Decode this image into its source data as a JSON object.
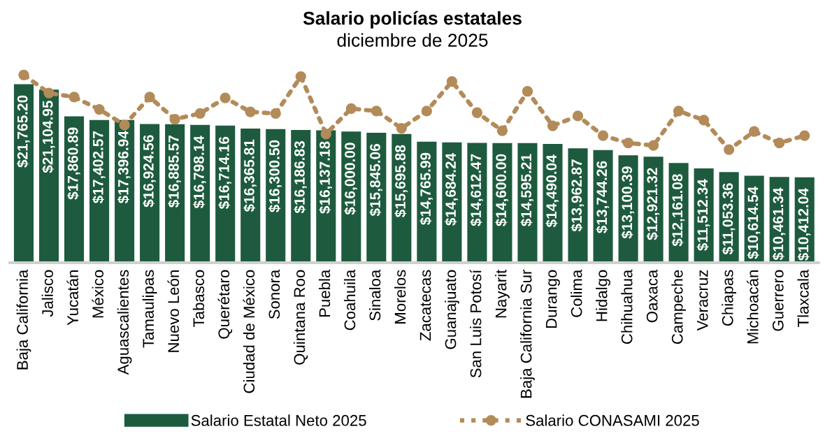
{
  "chart_data": {
    "type": "bar",
    "title": "Salario policías estatales",
    "subtitle": "diciembre de 2025",
    "categories": [
      "Baja California",
      "Jalisco",
      "Yucatán",
      "México",
      "Aguascalientes",
      "Tamaulipas",
      "Nuevo León",
      "Tabasco",
      "Querétaro",
      "Ciudad de México",
      "Sonora",
      "Quintana Roo",
      "Puebla",
      "Coahuila",
      "Sinaloa",
      "Morelos",
      "Zacatecas",
      "Guanajuato",
      "San Luis Potosí",
      "Nayarit",
      "Baja California Sur",
      "Durango",
      "Colima",
      "Hidalgo",
      "Chihuahua",
      "Oaxaca",
      "Campeche",
      "Veracruz",
      "Chiapas",
      "Michoacán",
      "Guerrero",
      "Tlaxcala"
    ],
    "series": [
      {
        "name": "Salario Estatal Neto 2025",
        "color": "#1e5b3e",
        "values": [
          21765.2,
          21104.95,
          17860.89,
          17402.57,
          17396.94,
          16924.56,
          16885.57,
          16798.14,
          16714.16,
          16365.81,
          16300.5,
          16186.83,
          16137.18,
          16000.0,
          15845.06,
          15695.88,
          14765.99,
          14684.24,
          14612.47,
          14600.0,
          14595.21,
          14490.04,
          13962.87,
          13744.26,
          13100.39,
          12921.32,
          12161.08,
          11512.34,
          11053.36,
          10614.54,
          10461.34,
          10412.04
        ],
        "value_labels": [
          "$21,765.20",
          "$21,104.95",
          "$17,860.89",
          "$17,402.57",
          "$17,396.94",
          "$16,924.56",
          "$16,885.57",
          "$16,798.14",
          "$16,714.16",
          "$16,365.81",
          "$16,300.50",
          "$16,186.83",
          "$16,137.18",
          "$16,000.00",
          "$15,845.06",
          "$15,695.88",
          "$14,765.99",
          "$14,684.24",
          "$14,612.47",
          "$14,600.00",
          "$14,595.21",
          "$14,490.04",
          "$13,962.87",
          "$13,744.26",
          "$13,100.39",
          "$12,921.32",
          "$12,161.08",
          "$11,512.34",
          "$11,053.36",
          "$10,614.54",
          "$10,461.34",
          "$10,412.04"
        ]
      },
      {
        "name": "Salario CONASAMI 2025",
        "type": "line",
        "color": "#b38b59",
        "line_style": "dotted",
        "marker": "circle",
        "values": [
          22900,
          20700,
          20200,
          18700,
          16800,
          20200,
          17500,
          18200,
          20100,
          18400,
          18200,
          22700,
          15700,
          18800,
          18500,
          16400,
          18500,
          22100,
          18300,
          16100,
          20900,
          16700,
          17900,
          15500,
          14600,
          14300,
          18500,
          17400,
          13800,
          16000,
          14600,
          15500
        ]
      }
    ],
    "tick_labels": "x",
    "grid": false,
    "legend": "bottom"
  }
}
